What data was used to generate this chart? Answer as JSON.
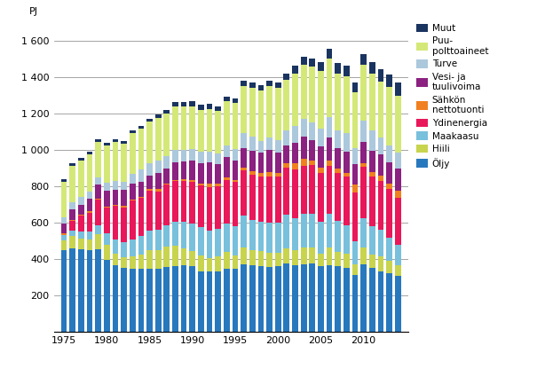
{
  "years": [
    1975,
    1976,
    1977,
    1978,
    1979,
    1980,
    1981,
    1982,
    1983,
    1984,
    1985,
    1986,
    1987,
    1988,
    1989,
    1990,
    1991,
    1992,
    1993,
    1994,
    1995,
    1996,
    1997,
    1998,
    1999,
    2000,
    2001,
    2002,
    2003,
    2004,
    2005,
    2006,
    2007,
    2008,
    2009,
    2010,
    2011,
    2012,
    2013,
    2014
  ],
  "series": {
    "Öljy": [
      450,
      460,
      455,
      450,
      455,
      395,
      365,
      350,
      345,
      345,
      345,
      345,
      355,
      360,
      365,
      360,
      335,
      335,
      335,
      345,
      345,
      370,
      365,
      360,
      358,
      360,
      375,
      365,
      370,
      375,
      360,
      365,
      360,
      350,
      315,
      370,
      350,
      335,
      325,
      310
    ],
    "Hiili": [
      55,
      65,
      60,
      60,
      80,
      85,
      65,
      60,
      70,
      80,
      105,
      105,
      115,
      115,
      95,
      85,
      85,
      70,
      80,
      95,
      75,
      95,
      85,
      85,
      75,
      75,
      85,
      85,
      95,
      90,
      70,
      100,
      80,
      80,
      55,
      95,
      75,
      80,
      65,
      55
    ],
    "Maakaasu": [
      25,
      30,
      35,
      40,
      50,
      60,
      80,
      85,
      95,
      100,
      105,
      110,
      115,
      130,
      145,
      150,
      155,
      150,
      150,
      155,
      160,
      175,
      165,
      160,
      165,
      165,
      185,
      175,
      185,
      185,
      175,
      185,
      170,
      155,
      130,
      160,
      155,
      145,
      130,
      115
    ],
    "Ydinenergia": [
      0,
      55,
      90,
      105,
      140,
      145,
      185,
      190,
      210,
      210,
      220,
      210,
      225,
      225,
      225,
      230,
      230,
      240,
      235,
      240,
      245,
      245,
      248,
      250,
      255,
      255,
      255,
      265,
      260,
      265,
      270,
      260,
      265,
      270,
      265,
      280,
      275,
      270,
      265,
      255
    ],
    "Sähkön nettotuonti": [
      10,
      5,
      5,
      10,
      5,
      5,
      5,
      10,
      5,
      5,
      10,
      15,
      5,
      5,
      10,
      10,
      10,
      20,
      15,
      15,
      10,
      15,
      20,
      20,
      25,
      20,
      25,
      35,
      40,
      25,
      25,
      30,
      20,
      20,
      45,
      20,
      25,
      30,
      30,
      40
    ],
    "Vesi- ja tuulivoima": [
      55,
      60,
      55,
      65,
      80,
      85,
      80,
      85,
      90,
      85,
      75,
      90,
      80,
      95,
      95,
      105,
      110,
      115,
      105,
      110,
      105,
      110,
      110,
      110,
      120,
      110,
      100,
      115,
      120,
      115,
      120,
      125,
      115,
      115,
      110,
      120,
      115,
      115,
      115,
      120
    ],
    "Turve": [
      35,
      35,
      40,
      40,
      40,
      45,
      50,
      45,
      55,
      65,
      65,
      65,
      70,
      70,
      65,
      65,
      65,
      60,
      60,
      65,
      65,
      80,
      80,
      65,
      70,
      70,
      80,
      90,
      100,
      95,
      95,
      115,
      95,
      100,
      90,
      115,
      110,
      90,
      95,
      90
    ],
    "Puu-polttoaineet": [
      195,
      200,
      200,
      205,
      195,
      205,
      215,
      210,
      220,
      225,
      230,
      235,
      235,
      240,
      240,
      235,
      230,
      235,
      235,
      240,
      250,
      260,
      265,
      275,
      280,
      285,
      280,
      290,
      295,
      305,
      315,
      320,
      315,
      315,
      305,
      305,
      315,
      310,
      320,
      310
    ],
    "Muut": [
      15,
      15,
      15,
      15,
      15,
      15,
      15,
      15,
      15,
      15,
      15,
      20,
      20,
      20,
      20,
      25,
      25,
      25,
      25,
      25,
      25,
      30,
      30,
      30,
      30,
      30,
      35,
      40,
      45,
      45,
      50,
      55,
      55,
      55,
      55,
      60,
      60,
      65,
      70,
      75
    ]
  },
  "colors": {
    "Öljy": "#2878BE",
    "Hiili": "#C8D44E",
    "Maakaasu": "#78C0DC",
    "Ydinenergia": "#E8185A",
    "Sähkön nettotuonti": "#F08020",
    "Vesi- ja tuulivoima": "#8B2180",
    "Turve": "#ACC8DC",
    "Puu-polttoaineet": "#D4E878",
    "Muut": "#1A3460"
  },
  "ylabel": "PJ",
  "ylim": [
    0,
    1700
  ],
  "yticks": [
    0,
    200,
    400,
    600,
    800,
    1000,
    1200,
    1400,
    1600
  ],
  "ytick_labels": [
    "",
    "200",
    "400",
    "600",
    "800",
    "1 000",
    "1 200",
    "1 400",
    "1 600"
  ],
  "xticks": [
    1975,
    1980,
    1985,
    1990,
    1995,
    2000,
    2005,
    2010
  ]
}
